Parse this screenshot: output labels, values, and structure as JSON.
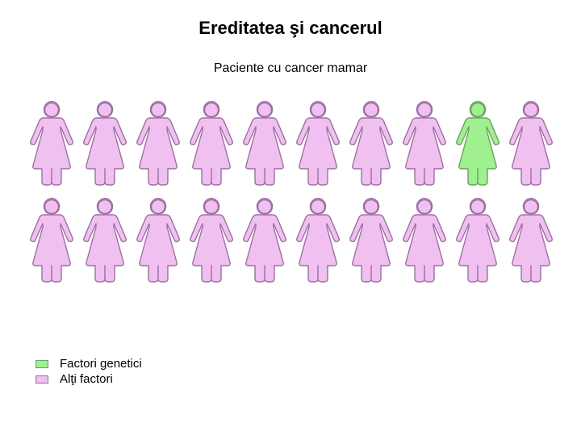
{
  "title": {
    "text": "Ereditatea şi cancerul",
    "fontsize": 22,
    "color": "#000000"
  },
  "subtitle": {
    "text": "Paciente cu cancer mamar",
    "fontsize": 16,
    "color": "#000000"
  },
  "infographic": {
    "type": "infographic",
    "rows": 2,
    "cols": 10,
    "figure_width": 60,
    "figure_height": 108,
    "gap": 6,
    "categories": {
      "other": {
        "fill": "#f0c1f0",
        "stroke": "#9c6ea0"
      },
      "genetic": {
        "fill": "#9ff08f",
        "stroke": "#6aa060"
      }
    },
    "grid": [
      [
        "other",
        "other",
        "other",
        "other",
        "other",
        "other",
        "other",
        "other",
        "genetic",
        "other"
      ],
      [
        "other",
        "other",
        "other",
        "other",
        "other",
        "other",
        "other",
        "other",
        "other",
        "other"
      ]
    ]
  },
  "legend": {
    "items": [
      {
        "label": "Factori genetici",
        "swatch": "#9ff08f",
        "border": "#6aa060"
      },
      {
        "label": "Alţi factori",
        "swatch": "#f0c1f0",
        "border": "#9c6ea0"
      }
    ],
    "fontsize": 15,
    "color": "#000000"
  },
  "background_color": "#ffffff"
}
